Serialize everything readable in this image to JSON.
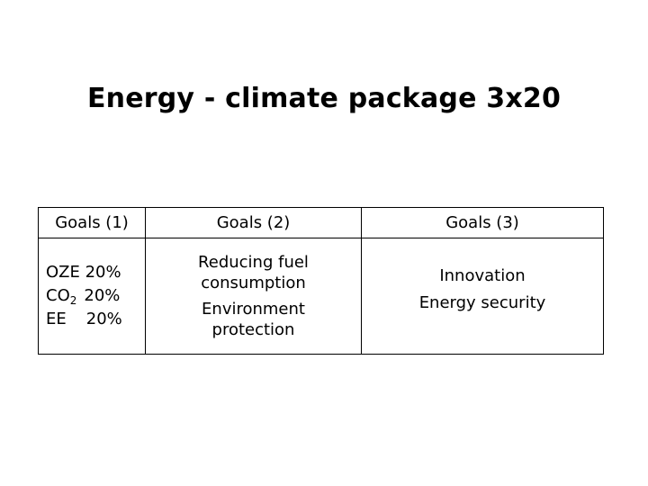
{
  "title": "Energy - climate package 3x20",
  "table": {
    "headers": [
      "Goals (1)",
      "Goals (2)",
      "Goals (3)"
    ],
    "goals1": {
      "oze_label": "OZE",
      "oze_value": "20%",
      "co2_label": "CO",
      "co2_sub": "2",
      "co2_value": "20%",
      "ee_label": "EE",
      "ee_value": "20%"
    },
    "goals2": [
      "Reducing fuel",
      "consumption",
      "Environment",
      "protection"
    ],
    "goals3": [
      "Innovation",
      "Energy security"
    ]
  }
}
